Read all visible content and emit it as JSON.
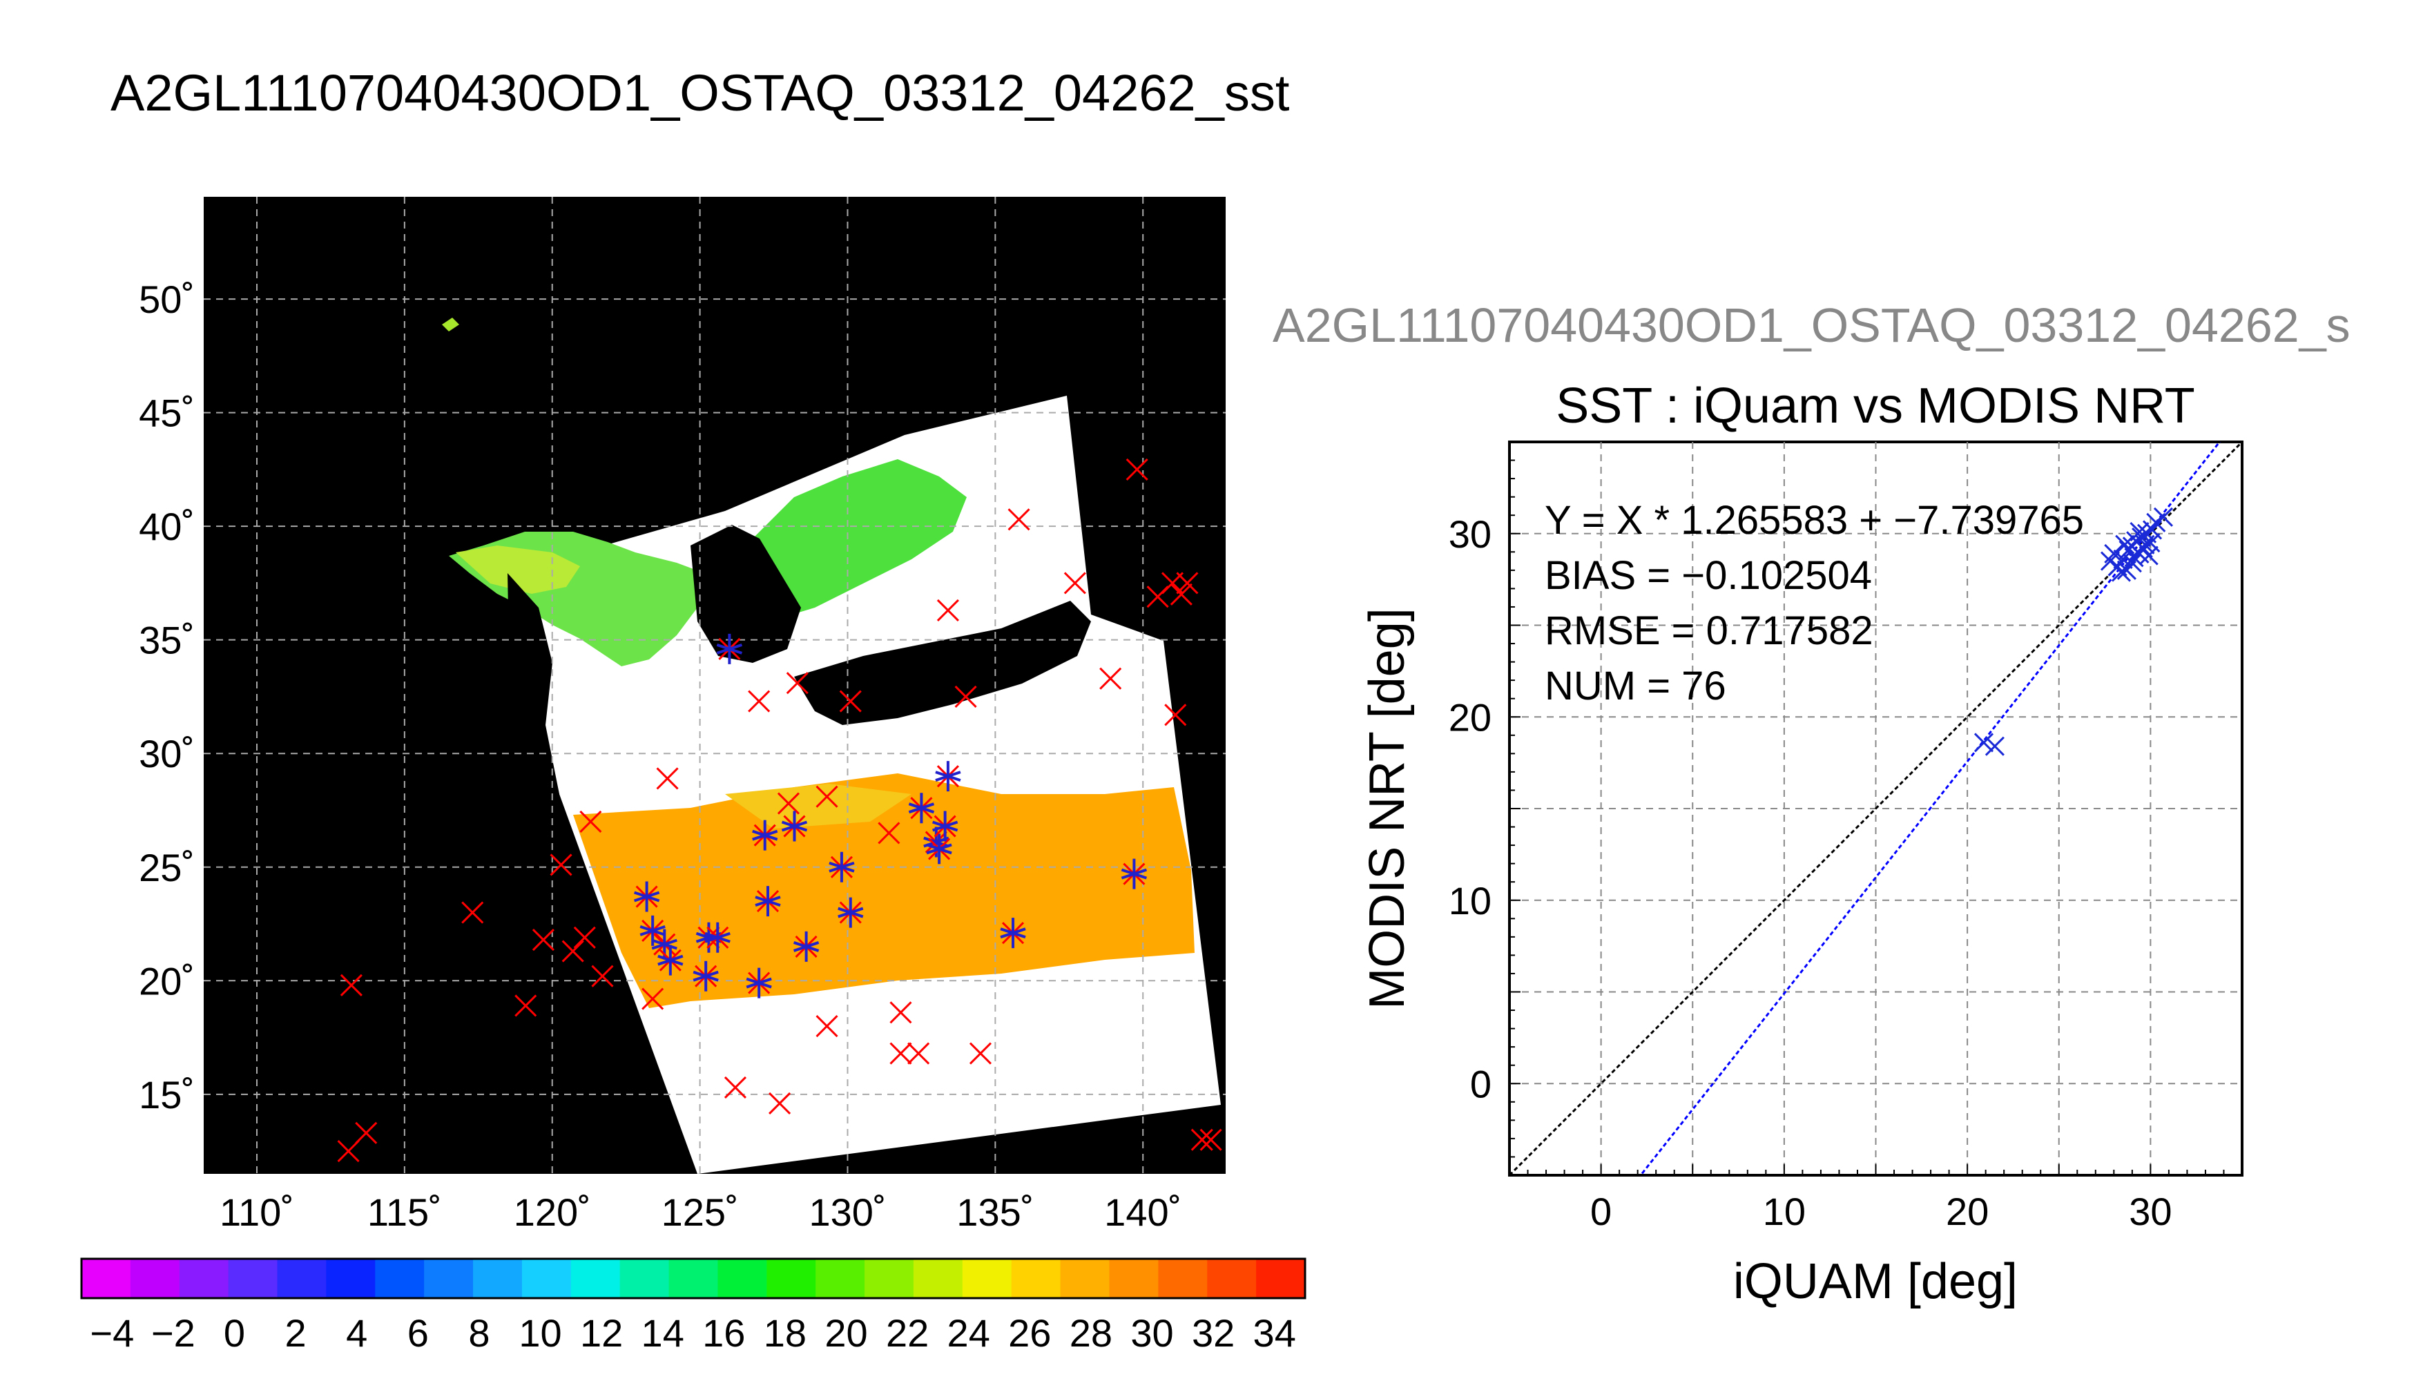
{
  "main_title": "A2GL11107040430OD1_OSTAQ_03312_04262_sst",
  "colors": {
    "map_background": "#000000",
    "swath": "#ffffff",
    "buoy_marker": "#ff0000",
    "match_marker": "#2222cc",
    "scatter_marker": "#1a2ad6",
    "fit_line": "#0000ff",
    "one_to_one_line": "#000000",
    "overlay_title": "#888888"
  },
  "map": {
    "lon_ticks": [
      "110˚",
      "115˚",
      "120˚",
      "125˚",
      "130˚",
      "135˚",
      "140˚"
    ],
    "lat_ticks": [
      "50˚",
      "45˚",
      "40˚",
      "35˚",
      "30˚",
      "25˚",
      "20˚",
      "15˚"
    ],
    "lon_values": [
      110,
      115,
      120,
      125,
      130,
      135,
      140
    ],
    "lat_values": [
      50,
      45,
      40,
      35,
      30,
      25,
      20,
      15
    ],
    "lon_range": [
      108.2,
      142.8
    ],
    "lat_range": [
      11.5,
      54.5
    ],
    "buoys_red": [
      [
        113.2,
        19.8
      ],
      [
        113.7,
        13.3
      ],
      [
        113.1,
        12.5
      ],
      [
        117.3,
        23.0
      ],
      [
        119.1,
        18.9
      ],
      [
        119.7,
        21.8
      ],
      [
        120.3,
        25.1
      ],
      [
        120.7,
        21.3
      ],
      [
        121.1,
        21.9
      ],
      [
        121.3,
        27.0
      ],
      [
        121.7,
        20.2
      ],
      [
        123.4,
        19.2
      ],
      [
        123.9,
        28.9
      ],
      [
        126.2,
        15.3
      ],
      [
        127.0,
        32.3
      ],
      [
        127.7,
        14.6
      ],
      [
        128.0,
        27.8
      ],
      [
        128.3,
        33.1
      ],
      [
        129.3,
        18.0
      ],
      [
        129.3,
        28.1
      ],
      [
        130.1,
        32.3
      ],
      [
        131.4,
        26.5
      ],
      [
        131.8,
        18.6
      ],
      [
        131.8,
        16.8
      ],
      [
        132.4,
        16.8
      ],
      [
        133.4,
        36.3
      ],
      [
        134.0,
        32.5
      ],
      [
        134.5,
        16.8
      ],
      [
        135.8,
        40.3
      ],
      [
        137.7,
        37.5
      ],
      [
        138.9,
        33.3
      ],
      [
        139.8,
        42.5
      ],
      [
        140.5,
        36.9
      ],
      [
        141.0,
        37.5
      ],
      [
        141.1,
        31.7
      ],
      [
        141.3,
        37.0
      ],
      [
        141.5,
        37.5
      ],
      [
        142.0,
        13.0
      ],
      [
        142.3,
        13.0
      ]
    ],
    "matchups": [
      [
        126.0,
        34.6
      ],
      [
        123.2,
        23.7
      ],
      [
        123.4,
        22.2
      ],
      [
        123.8,
        21.6
      ],
      [
        124.0,
        20.9
      ],
      [
        125.2,
        20.2
      ],
      [
        125.3,
        21.9
      ],
      [
        125.6,
        21.9
      ],
      [
        127.0,
        19.9
      ],
      [
        127.2,
        26.4
      ],
      [
        127.3,
        23.5
      ],
      [
        128.2,
        26.8
      ],
      [
        128.6,
        21.5
      ],
      [
        129.8,
        25.0
      ],
      [
        130.1,
        23.0
      ],
      [
        132.5,
        27.6
      ],
      [
        133.0,
        26.1
      ],
      [
        133.1,
        25.8
      ],
      [
        133.3,
        26.8
      ],
      [
        133.4,
        29.0
      ],
      [
        135.6,
        22.1
      ],
      [
        139.7,
        24.7
      ]
    ]
  },
  "colorbar": {
    "tick_labels": [
      "−4",
      "−2",
      "0",
      "2",
      "4",
      "6",
      "8",
      "10",
      "12",
      "14",
      "16",
      "18",
      "20",
      "22",
      "24",
      "26",
      "28",
      "30",
      "32",
      "34"
    ],
    "range": [
      -5,
      35
    ],
    "colors": [
      "#e800ff",
      "#c000ff",
      "#8a1aff",
      "#5a2cff",
      "#2a2aff",
      "#0a24ff",
      "#0055ff",
      "#0e7cff",
      "#12a8ff",
      "#14cfff",
      "#00f0e8",
      "#00f0a8",
      "#00f070",
      "#00f038",
      "#20f000",
      "#58f000",
      "#8ef000",
      "#c4f000",
      "#f0f000",
      "#ffd200",
      "#ffb000",
      "#ff9000",
      "#ff6a00",
      "#ff4600",
      "#ff2200"
    ]
  },
  "overlay_title": "A2GL11107040430OD1_OSTAQ_03312_04262_s",
  "scatter_stats": [
    "Y = X * 1.265583 + −7.739765",
    "BIAS = −0.102504",
    "RMSE = 0.717582",
    "NUM = 76"
  ],
  "chart_data": {
    "type": "scatter",
    "title": "SST : iQuam vs MODIS NRT",
    "xlabel": "iQUAM [deg]",
    "ylabel": "MODIS NRT [deg]",
    "xlim": [
      -5,
      35
    ],
    "ylim": [
      -5,
      35
    ],
    "x_ticks": [
      "0",
      "10",
      "20",
      "30"
    ],
    "y_ticks": [
      "0",
      "10",
      "20",
      "30"
    ],
    "x_tick_values": [
      0,
      10,
      20,
      30
    ],
    "y_tick_values": [
      0,
      10,
      20,
      30
    ],
    "grid": true,
    "series": [
      {
        "points": [
          [
            20.9,
            18.6
          ],
          [
            21.5,
            18.4
          ],
          [
            27.8,
            28.5
          ],
          [
            28.0,
            28.9
          ],
          [
            28.2,
            28.2
          ],
          [
            28.4,
            27.9
          ],
          [
            28.5,
            28.6
          ],
          [
            28.7,
            28.0
          ],
          [
            28.8,
            29.1
          ],
          [
            29.0,
            29.3
          ],
          [
            29.1,
            28.7
          ],
          [
            29.2,
            29.6
          ],
          [
            29.3,
            29.0
          ],
          [
            29.4,
            28.9
          ],
          [
            29.5,
            29.8
          ],
          [
            29.6,
            29.2
          ],
          [
            29.7,
            29.4
          ],
          [
            29.8,
            30.0
          ],
          [
            29.9,
            28.8
          ],
          [
            30.0,
            29.5
          ],
          [
            30.1,
            30.2
          ],
          [
            30.3,
            30.6
          ],
          [
            30.7,
            30.9
          ],
          [
            29.0,
            28.4
          ],
          [
            28.6,
            29.4
          ],
          [
            29.4,
            30.1
          ]
        ]
      }
    ],
    "fit": {
      "slope": 1.265583,
      "intercept": -7.739765
    },
    "one_to_one": true
  }
}
